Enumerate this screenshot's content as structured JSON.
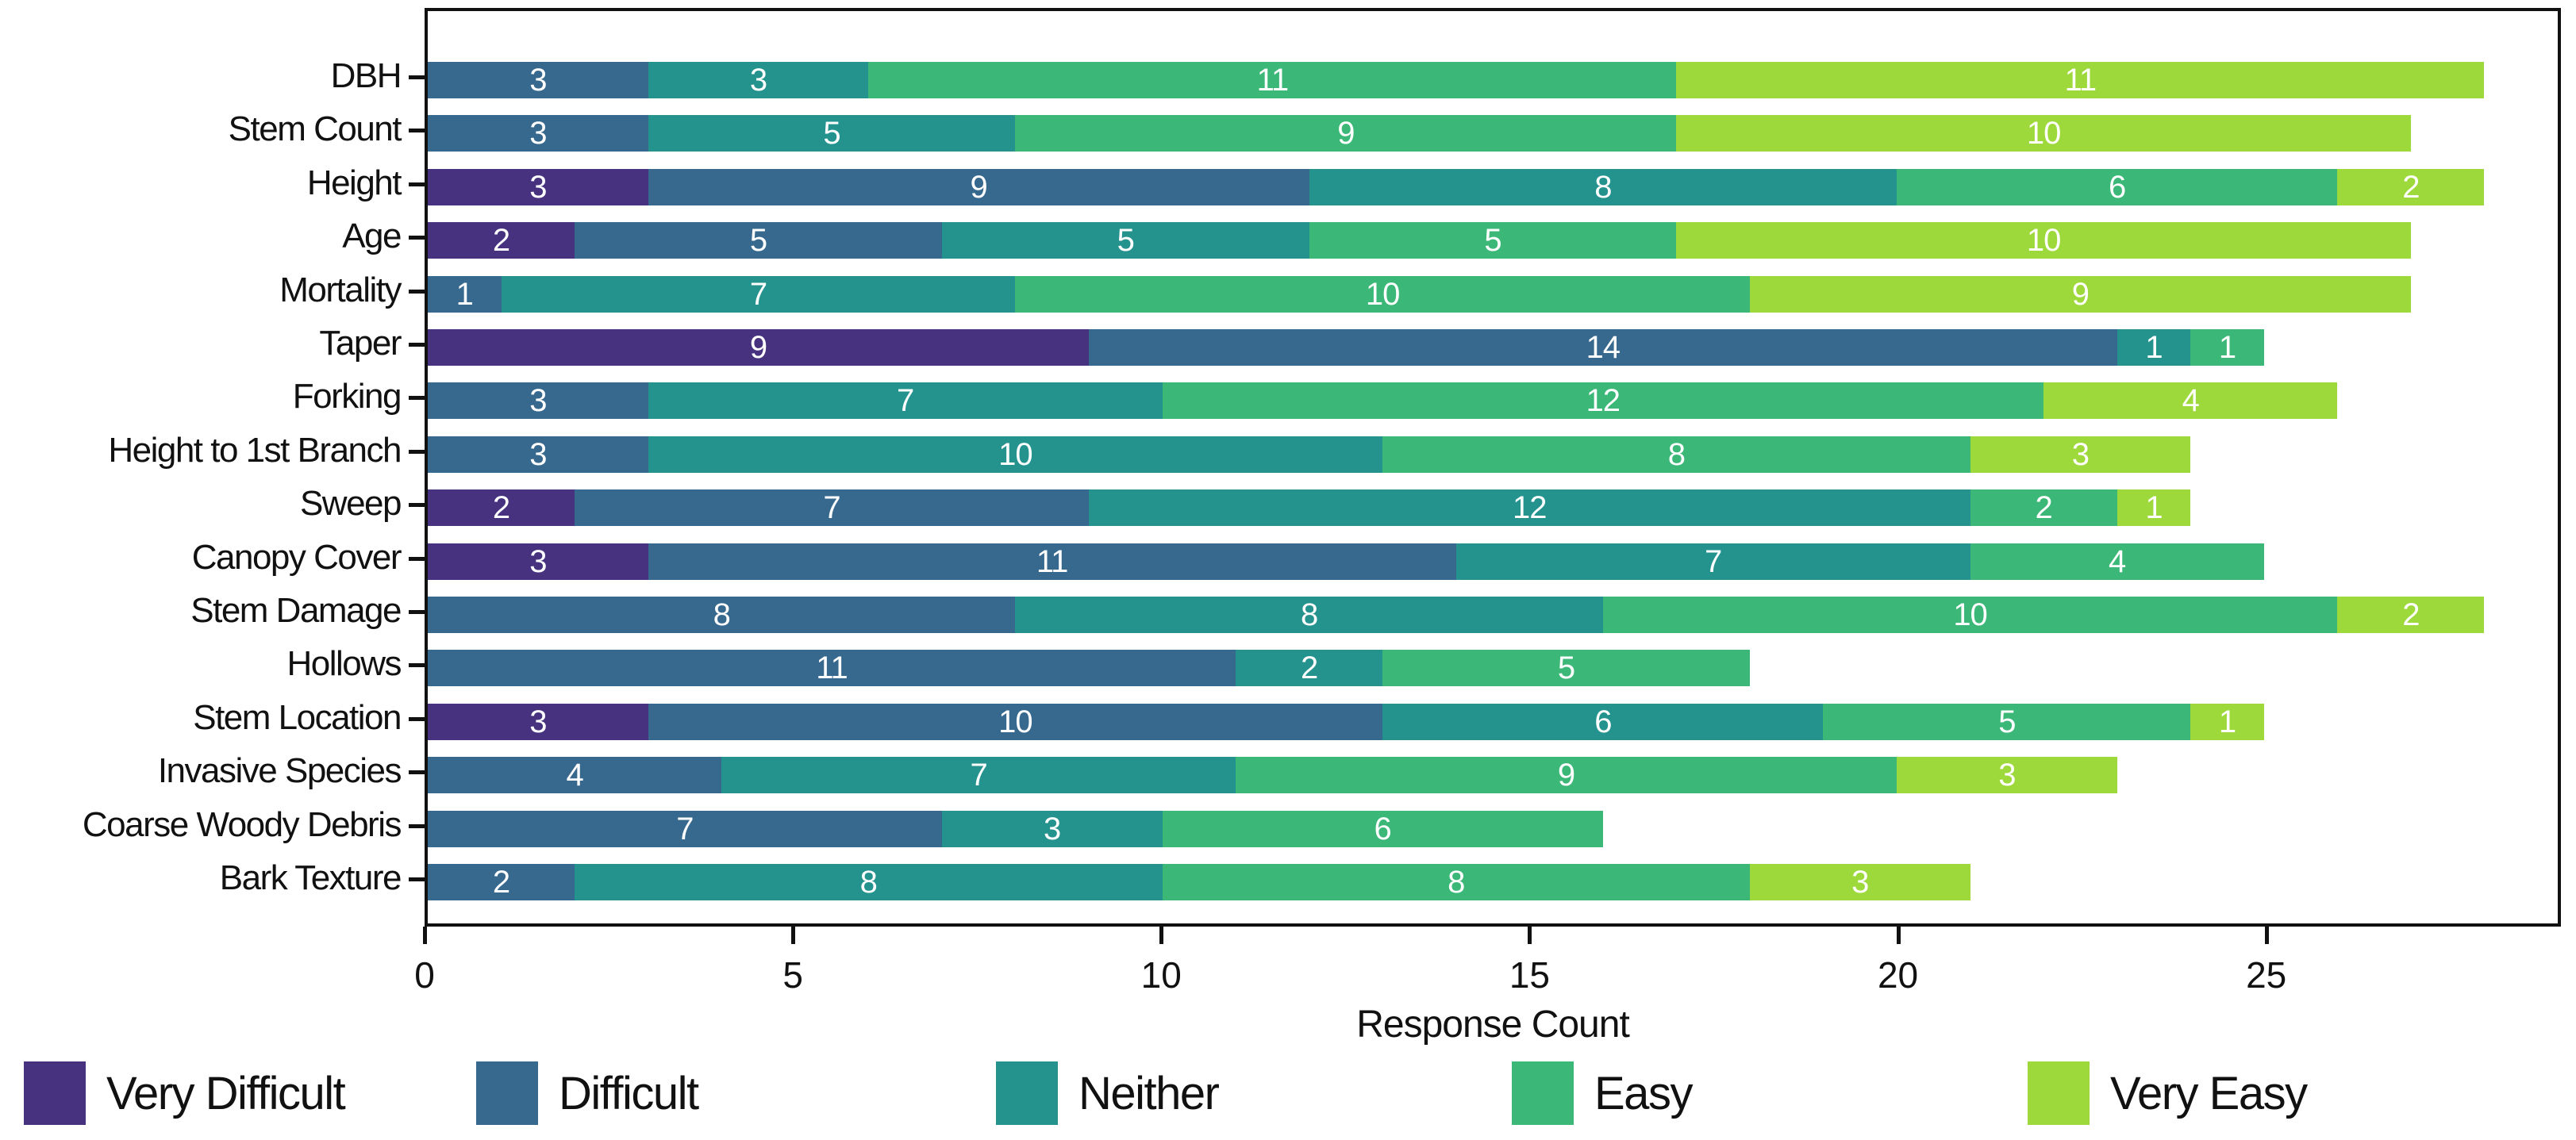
{
  "chart_data": {
    "type": "bar",
    "orientation": "horizontal",
    "stacked": true,
    "title": "",
    "xlabel": "Response Count",
    "ylabel": "",
    "xlim": [
      0,
      29
    ],
    "xticks": [
      0,
      5,
      10,
      15,
      20,
      25
    ],
    "grid": false,
    "legend_position": "bottom",
    "bar_label_color": "#ffffff",
    "categories": [
      "DBH",
      "Stem Count",
      "Height",
      "Age",
      "Mortality",
      "Taper",
      "Forking",
      "Height to 1st Branch",
      "Sweep",
      "Canopy Cover",
      "Stem Damage",
      "Hollows",
      "Stem Location",
      "Invasive Species",
      "Coarse Woody Debris",
      "Bark Texture"
    ],
    "series": [
      {
        "name": "Very Difficult",
        "color": "#46327e",
        "values": [
          0,
          0,
          3,
          2,
          0,
          9,
          0,
          0,
          2,
          3,
          0,
          0,
          3,
          0,
          0,
          0
        ]
      },
      {
        "name": "Difficult",
        "color": "#37688e",
        "values": [
          3,
          3,
          9,
          5,
          1,
          14,
          3,
          3,
          7,
          11,
          8,
          11,
          10,
          4,
          7,
          2
        ]
      },
      {
        "name": "Neither",
        "color": "#24938e",
        "values": [
          3,
          5,
          8,
          5,
          7,
          1,
          7,
          10,
          12,
          7,
          8,
          2,
          6,
          7,
          3,
          8
        ]
      },
      {
        "name": "Easy",
        "color": "#3bb877",
        "values": [
          11,
          9,
          6,
          5,
          10,
          1,
          12,
          8,
          2,
          4,
          10,
          5,
          5,
          9,
          6,
          8
        ]
      },
      {
        "name": "Very Easy",
        "color": "#9ed93b",
        "values": [
          11,
          10,
          2,
          10,
          9,
          0,
          4,
          3,
          1,
          0,
          2,
          0,
          1,
          3,
          0,
          3
        ]
      }
    ],
    "totals": [
      28,
      27,
      28,
      27,
      27,
      25,
      26,
      24,
      24,
      25,
      28,
      18,
      25,
      23,
      16,
      21
    ]
  }
}
